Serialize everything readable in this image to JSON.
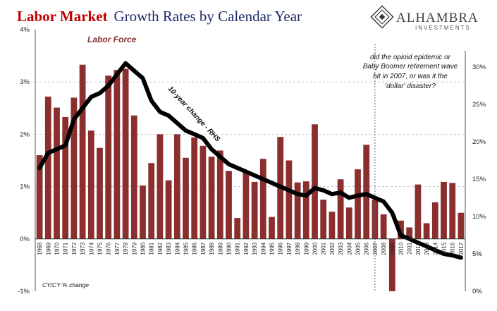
{
  "title_part1": "Labor Market",
  "title_part2": "Growth Rates by Calendar Year",
  "logo": {
    "name": "ALHAMBRA",
    "sub": "INVESTMENTS"
  },
  "chart_data": {
    "type": "bar",
    "categories": [
      "1968",
      "1969",
      "1970",
      "1971",
      "1972",
      "1973",
      "1974",
      "1975",
      "1976",
      "1977",
      "1978",
      "1979",
      "1980",
      "1981",
      "1982",
      "1983",
      "1984",
      "1985",
      "1986",
      "1987",
      "1988",
      "1989",
      "1990",
      "1991",
      "1992",
      "1993",
      "1994",
      "1995",
      "1996",
      "1997",
      "1998",
      "1999",
      "2000",
      "2001",
      "2002",
      "2003",
      "2004",
      "2005",
      "2006",
      "2007",
      "2008",
      "2009",
      "2010",
      "2011",
      "2012",
      "2013",
      "2014",
      "2015",
      "2016",
      "2017"
    ],
    "series": [
      {
        "name": "Labor Force",
        "axis": "left",
        "color": "#8b2e2e",
        "values": [
          1.6,
          2.72,
          2.51,
          2.33,
          2.7,
          3.33,
          2.07,
          1.74,
          3.12,
          3.23,
          3.25,
          2.36,
          1.02,
          1.45,
          2.0,
          1.12,
          2.0,
          1.55,
          1.94,
          1.78,
          1.57,
          1.69,
          1.3,
          0.4,
          1.27,
          1.09,
          1.53,
          0.42,
          1.95,
          1.5,
          1.08,
          1.1,
          2.19,
          0.75,
          0.52,
          1.14,
          0.6,
          1.33,
          1.8,
          0.75,
          0.47,
          -1.0,
          0.35,
          0.22,
          1.04,
          0.3,
          0.7,
          1.09,
          1.07,
          0.5
        ]
      },
      {
        "name": "10-year change - RHS",
        "axis": "right",
        "color": "#000000",
        "values": [
          16.5,
          18.5,
          19.0,
          19.5,
          23.0,
          24.5,
          26.0,
          26.5,
          27.5,
          29.0,
          30.5,
          29.5,
          28.5,
          25.5,
          24.0,
          23.5,
          22.5,
          21.5,
          21.0,
          20.5,
          19.0,
          18.0,
          17.0,
          16.5,
          16.0,
          15.5,
          15.0,
          14.5,
          14.0,
          13.5,
          13.0,
          12.8,
          13.8,
          13.5,
          13.0,
          13.2,
          12.5,
          12.8,
          13.0,
          12.5,
          12.0,
          10.5,
          7.5,
          7.0,
          6.5,
          6.0,
          5.5,
          5.0,
          4.8,
          4.5
        ]
      }
    ],
    "y_left": {
      "range": [
        -1,
        4
      ],
      "ticks": [
        "-1%",
        "0%",
        "1%",
        "2%",
        "3%",
        "4%"
      ]
    },
    "y_right": {
      "range": [
        0,
        35
      ],
      "ticks": [
        "0%",
        "5%",
        "10%",
        "15%",
        "20%",
        "25%",
        "30%"
      ]
    },
    "grid": "horizontal-dashed",
    "annotations": {
      "series_label": "Labor Force",
      "line_label": "10-year change - RHS",
      "note": [
        "did the opioid epidemic or",
        "Baby Boomer retirement wave",
        "hit in 2007, or was it the",
        "'dollar' disaster?"
      ],
      "footnote": "CY/CY % change",
      "marker_year": "2007"
    }
  }
}
